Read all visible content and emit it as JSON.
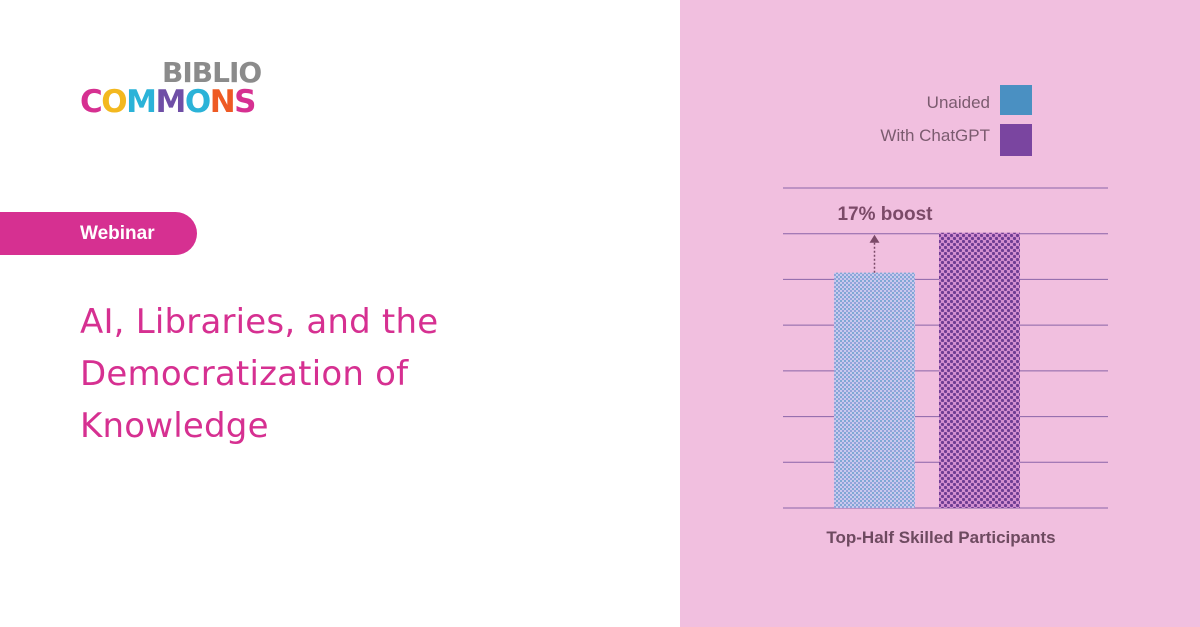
{
  "logo": {
    "line1": "BIBLIO",
    "line2_letters": [
      {
        "char": "C",
        "color": "#d63091"
      },
      {
        "char": "O",
        "color": "#f3b81f"
      },
      {
        "char": "M",
        "color": "#2bb3d8"
      },
      {
        "char": "M",
        "color": "#6f4fa6"
      },
      {
        "char": "O",
        "color": "#2bb3d8"
      },
      {
        "char": "N",
        "color": "#ee5a24"
      },
      {
        "char": "S",
        "color": "#d63091"
      }
    ]
  },
  "badge": {
    "label": "Webinar"
  },
  "title": {
    "lines": [
      "AI, Libraries, and the",
      "Democratization of",
      "Knowledge"
    ]
  },
  "colors": {
    "accent": "#d63091",
    "panel_background": "#f1bfdf",
    "unaided": "#4a90c2",
    "with_chatgpt": "#7a45a0",
    "gridline": "#8a64a8"
  },
  "chart_data": {
    "type": "bar",
    "categories": [
      "Top-Half Skilled Participants"
    ],
    "series": [
      {
        "name": "Unaided",
        "values": [
          100
        ],
        "color": "#4a90c2"
      },
      {
        "name": "With ChatGPT",
        "values": [
          117
        ],
        "color": "#7a45a0"
      }
    ],
    "annotation": {
      "text": "17% boost",
      "from_series": 0,
      "to_value": 117
    },
    "xlabel": "",
    "ylabel": "",
    "ylim": [
      0,
      136
    ],
    "grid": true,
    "gridline_count": 7,
    "legend": "top-right"
  }
}
